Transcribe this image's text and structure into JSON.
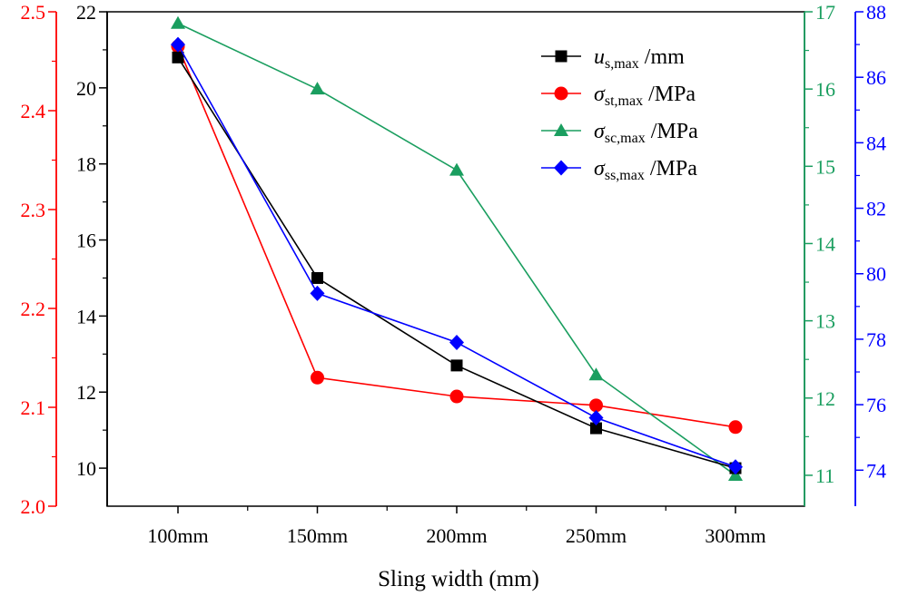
{
  "chart_data": {
    "type": "line",
    "xlabel": "Sling width (mm)",
    "categories": [
      "100mm",
      "150mm",
      "200mm",
      "250mm",
      "300mm"
    ],
    "axes": {
      "left_outer": {
        "range": [
          2.0,
          2.5
        ],
        "ticks": [
          2.0,
          2.1,
          2.2,
          2.3,
          2.4,
          2.5
        ],
        "color": "#ff0000"
      },
      "left_inner": {
        "range": [
          9,
          22
        ],
        "ticks": [
          10,
          12,
          14,
          16,
          18,
          20,
          22
        ],
        "color": "#000000"
      },
      "right_inner": {
        "range": [
          10.6,
          17
        ],
        "ticks": [
          11,
          12,
          13,
          14,
          15,
          16,
          17
        ],
        "color": "#1a9e5f"
      },
      "right_outer": {
        "range": [
          72.9,
          88
        ],
        "ticks": [
          74,
          76,
          78,
          80,
          82,
          84,
          86,
          88
        ],
        "color": "#0000ff"
      }
    },
    "series": [
      {
        "name": "u_s,max /mm",
        "symbol": "u",
        "subscript": "s,max",
        "unit": "/mm",
        "axis": "left_inner",
        "color": "#000000",
        "marker": "square",
        "values": [
          20.8,
          15.0,
          12.7,
          11.05,
          10.0
        ]
      },
      {
        "name": "σ_st,max /MPa",
        "symbol": "σ",
        "subscript": "st,max",
        "unit": "/MPa",
        "axis": "left_outer",
        "color": "#ff0000",
        "marker": "circle",
        "values": [
          2.465,
          2.13,
          2.111,
          2.102,
          2.08
        ]
      },
      {
        "name": "σ_sc,max /MPa",
        "symbol": "σ",
        "subscript": "sc,max",
        "unit": "/MPa",
        "axis": "right_inner",
        "color": "#1a9e5f",
        "marker": "triangle",
        "values": [
          16.85,
          16.0,
          14.95,
          12.3,
          11.0
        ]
      },
      {
        "name": "σ_ss,max /MPa",
        "symbol": "σ",
        "subscript": "ss,max",
        "unit": "/MPa",
        "axis": "right_outer",
        "color": "#0000ff",
        "marker": "diamond",
        "values": [
          87.0,
          79.4,
          77.9,
          75.6,
          74.1
        ]
      }
    ],
    "legend_position": "top-right",
    "grid": false
  }
}
